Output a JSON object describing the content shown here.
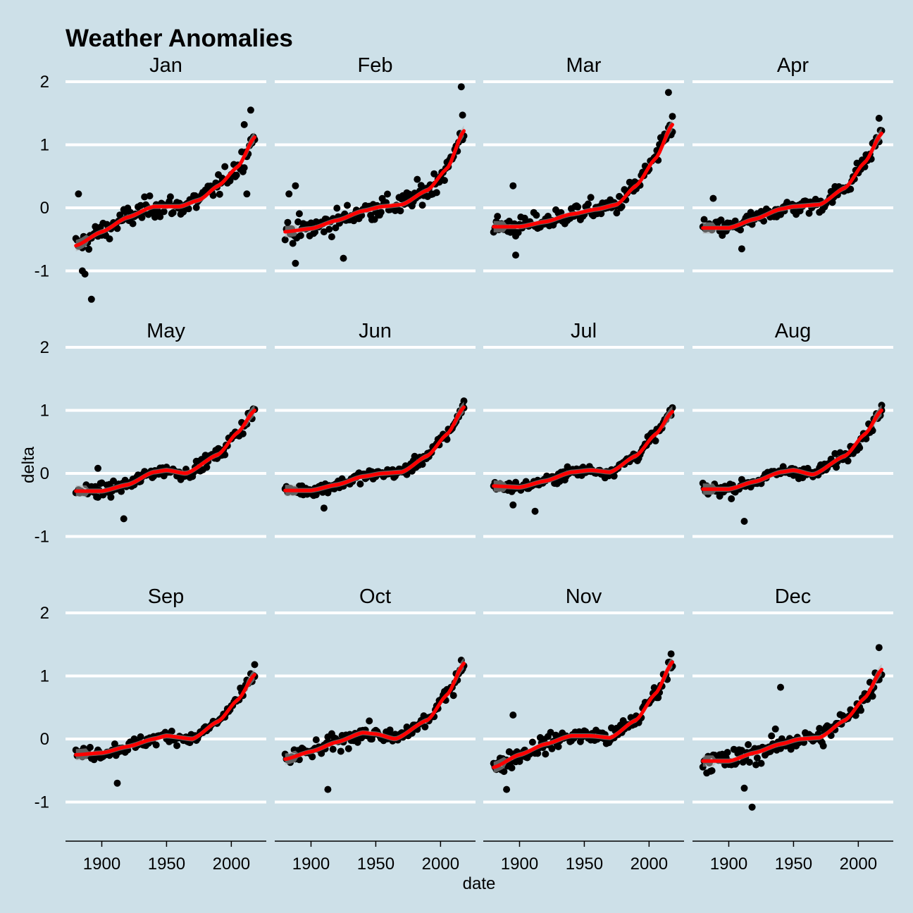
{
  "chart_data": {
    "type": "scatter",
    "title": "Weather Anomalies",
    "xlabel": "date",
    "ylabel": "delta",
    "xlim": [
      1872,
      2027
    ],
    "ylim": [
      -1.6,
      2.2
    ],
    "x_ticks": [
      1900,
      1950,
      2000
    ],
    "y_ticks": [
      2,
      1,
      0,
      -1
    ],
    "y_tick_labels": [
      "2",
      "1",
      "0",
      "-1"
    ],
    "grid": "horizontal",
    "smooth_color": "#ff0000",
    "point_color": "#000000",
    "background": "#cde0e8",
    "point_series": "scatter points, years 1880-2018 (one per year, per month), values estimated from the plot",
    "panels": [
      {
        "name": "Jan",
        "smooth_x": [
          1880,
          1900,
          1920,
          1940,
          1960,
          1975,
          1990,
          2005,
          2018
        ],
        "smooth_y": [
          -0.6,
          -0.38,
          -0.15,
          0.02,
          0.02,
          0.12,
          0.35,
          0.65,
          1.12
        ],
        "noise": 0.22,
        "outliers": [
          [
            1885,
            -1.0
          ],
          [
            1887,
            -1.05
          ],
          [
            1892,
            -1.45
          ],
          [
            2015,
            1.55
          ],
          [
            2010,
            1.32
          ],
          [
            2012,
            0.22
          ],
          [
            1882,
            0.22
          ]
        ]
      },
      {
        "name": "Feb",
        "smooth_x": [
          1880,
          1900,
          1920,
          1940,
          1955,
          1970,
          1990,
          2005,
          2018
        ],
        "smooth_y": [
          -0.38,
          -0.33,
          -0.2,
          -0.05,
          0.02,
          0.05,
          0.28,
          0.62,
          1.22
        ],
        "noise": 0.24,
        "outliers": [
          [
            2016,
            1.92
          ],
          [
            2017,
            1.47
          ],
          [
            1888,
            -0.88
          ],
          [
            1925,
            -0.8
          ],
          [
            1883,
            0.22
          ],
          [
            1888,
            0.35
          ]
        ]
      },
      {
        "name": "Mar",
        "smooth_x": [
          1880,
          1900,
          1920,
          1940,
          1960,
          1975,
          1990,
          2005,
          2018
        ],
        "smooth_y": [
          -0.3,
          -0.3,
          -0.22,
          -0.1,
          -0.02,
          0.05,
          0.35,
          0.78,
          1.32
        ],
        "noise": 0.2,
        "outliers": [
          [
            2015,
            1.83
          ],
          [
            2018,
            1.45
          ],
          [
            1897,
            -0.75
          ],
          [
            1895,
            0.35
          ]
        ]
      },
      {
        "name": "Apr",
        "smooth_x": [
          1880,
          1900,
          1920,
          1940,
          1950,
          1970,
          1990,
          2005,
          2018
        ],
        "smooth_y": [
          -0.32,
          -0.32,
          -0.18,
          -0.02,
          0.02,
          0.05,
          0.32,
          0.72,
          1.18
        ],
        "noise": 0.17,
        "outliers": [
          [
            2016,
            1.42
          ],
          [
            1910,
            -0.65
          ],
          [
            1888,
            0.15
          ]
        ]
      },
      {
        "name": "May",
        "smooth_x": [
          1880,
          1900,
          1920,
          1940,
          1950,
          1965,
          1990,
          2005,
          2018
        ],
        "smooth_y": [
          -0.28,
          -0.28,
          -0.18,
          0.02,
          0.05,
          0.0,
          0.3,
          0.65,
          1.0
        ],
        "noise": 0.13,
        "outliers": [
          [
            1917,
            -0.72
          ],
          [
            1897,
            0.08
          ]
        ]
      },
      {
        "name": "Jun",
        "smooth_x": [
          1880,
          1900,
          1920,
          1940,
          1955,
          1970,
          1990,
          2005,
          2018
        ],
        "smooth_y": [
          -0.27,
          -0.27,
          -0.18,
          -0.05,
          0.0,
          0.02,
          0.28,
          0.62,
          1.05
        ],
        "noise": 0.12,
        "outliers": [
          [
            2018,
            1.15
          ],
          [
            1910,
            -0.55
          ]
        ]
      },
      {
        "name": "Jul",
        "smooth_x": [
          1880,
          1900,
          1920,
          1940,
          1955,
          1970,
          1990,
          2005,
          2018
        ],
        "smooth_y": [
          -0.2,
          -0.22,
          -0.12,
          0.02,
          0.05,
          0.02,
          0.28,
          0.62,
          0.98
        ],
        "noise": 0.11,
        "outliers": [
          [
            1912,
            -0.6
          ],
          [
            1895,
            -0.5
          ]
        ]
      },
      {
        "name": "Aug",
        "smooth_x": [
          1880,
          1900,
          1920,
          1940,
          1950,
          1965,
          1990,
          2005,
          2018
        ],
        "smooth_y": [
          -0.25,
          -0.25,
          -0.13,
          0.02,
          0.05,
          -0.02,
          0.28,
          0.62,
          1.0
        ],
        "noise": 0.13,
        "outliers": [
          [
            1912,
            -0.76
          ],
          [
            2018,
            1.08
          ]
        ]
      },
      {
        "name": "Sep",
        "smooth_x": [
          1880,
          1900,
          1920,
          1940,
          1950,
          1970,
          1990,
          2005,
          2018
        ],
        "smooth_y": [
          -0.25,
          -0.22,
          -0.12,
          0.0,
          0.05,
          0.0,
          0.28,
          0.62,
          1.02
        ],
        "noise": 0.13,
        "outliers": [
          [
            1912,
            -0.7
          ],
          [
            2018,
            1.18
          ]
        ]
      },
      {
        "name": "Oct",
        "smooth_x": [
          1880,
          1900,
          1920,
          1940,
          1950,
          1965,
          1990,
          2005,
          2018
        ],
        "smooth_y": [
          -0.32,
          -0.2,
          -0.05,
          0.1,
          0.08,
          0.0,
          0.3,
          0.7,
          1.2
        ],
        "noise": 0.16,
        "outliers": [
          [
            1913,
            -0.8
          ],
          [
            2016,
            1.25
          ]
        ]
      },
      {
        "name": "Nov",
        "smooth_x": [
          1880,
          1900,
          1920,
          1940,
          1955,
          1970,
          1990,
          2005,
          2018
        ],
        "smooth_y": [
          -0.45,
          -0.25,
          -0.08,
          0.05,
          0.05,
          0.02,
          0.3,
          0.72,
          1.22
        ],
        "noise": 0.18,
        "outliers": [
          [
            1890,
            -0.8
          ],
          [
            2017,
            1.35
          ],
          [
            1895,
            0.38
          ]
        ]
      },
      {
        "name": "Dec",
        "smooth_x": [
          1880,
          1900,
          1920,
          1940,
          1955,
          1970,
          1990,
          2005,
          2018
        ],
        "smooth_y": [
          -0.35,
          -0.35,
          -0.22,
          -0.08,
          0.0,
          0.02,
          0.3,
          0.65,
          1.1
        ],
        "noise": 0.22,
        "outliers": [
          [
            1918,
            -1.08
          ],
          [
            1940,
            0.82
          ],
          [
            2016,
            1.45
          ],
          [
            1912,
            -0.78
          ]
        ]
      }
    ]
  }
}
